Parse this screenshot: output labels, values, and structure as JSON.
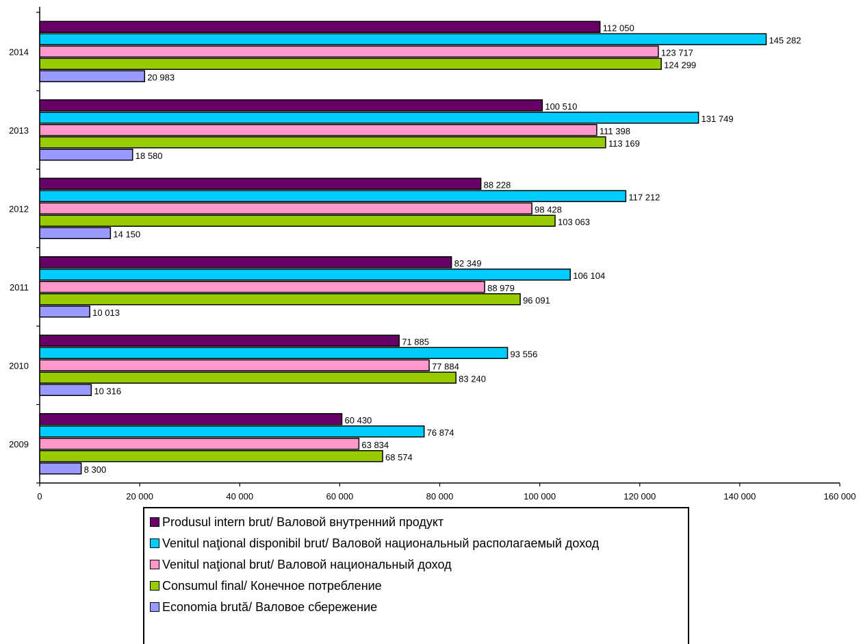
{
  "chart_data": {
    "type": "bar",
    "orientation": "horizontal",
    "categories": [
      "2009",
      "2010",
      "2011",
      "2012",
      "2013",
      "2014"
    ],
    "series": [
      {
        "name": "Produsul intern brut/ Валовой внутренний продукт",
        "color": "#660066",
        "values": [
          60430,
          71885,
          82349,
          88228,
          100510,
          112050
        ],
        "labels": [
          "60 430",
          "71 885",
          "82 349",
          "88 228",
          "100 510",
          "112 050"
        ]
      },
      {
        "name": "Venitul naţional disponibil brut/ Валовой национальный располагаемый доход",
        "color": "#00CCFF",
        "values": [
          76874,
          93556,
          106104,
          117212,
          131749,
          145282
        ],
        "labels": [
          "76 874",
          "93 556",
          "106 104",
          "117 212",
          "131 749",
          "145 282"
        ]
      },
      {
        "name": "Venitul naţional brut/ Валовой национальный доход",
        "color": "#FF99CC",
        "values": [
          63834,
          77884,
          88979,
          98428,
          111398,
          123717
        ],
        "labels": [
          "63 834",
          "77 884",
          "88 979",
          "98 428",
          "111 398",
          "123 717"
        ]
      },
      {
        "name": "Consumul final/ Конечное потребление",
        "color": "#99CC00",
        "values": [
          68574,
          83240,
          96091,
          103063,
          113169,
          124299
        ],
        "labels": [
          "68 574",
          "83 240",
          "96 091",
          "103 063",
          "113 169",
          "124 299"
        ]
      },
      {
        "name": "Economia brută/ Валовое сбережение",
        "color": "#9999FF",
        "values": [
          8300,
          10316,
          10013,
          14150,
          18580,
          20983
        ],
        "labels": [
          "8 300",
          "10 316",
          "10 013",
          "14 150",
          "18 580",
          "20 983"
        ]
      }
    ],
    "xlim": [
      0,
      160000
    ],
    "xticks": [
      0,
      20000,
      40000,
      60000,
      80000,
      100000,
      120000,
      140000,
      160000
    ],
    "xtick_labels": [
      "0",
      "20 000",
      "40 000",
      "60 000",
      "80 000",
      "100 000",
      "120 000",
      "140 000",
      "160 000"
    ],
    "title": "",
    "xlabel": "",
    "ylabel": "",
    "grid": false,
    "legend_position": "bottom"
  }
}
